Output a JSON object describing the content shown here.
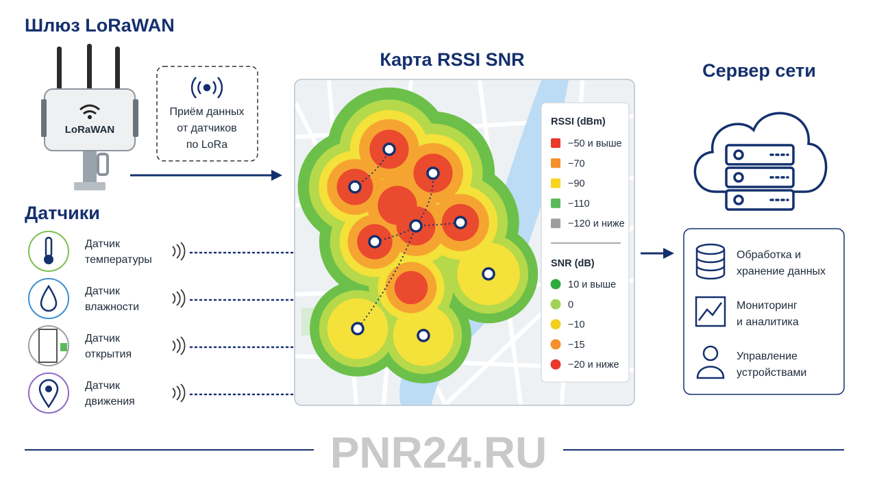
{
  "gateway": {
    "title": "Шлюз LoRaWAN",
    "device_label": "LoRaWAN",
    "note": [
      "Приём данных",
      "от датчиков",
      "по LoRa"
    ]
  },
  "sensors": {
    "title": "Датчики",
    "items": [
      [
        "Датчик",
        "температуры"
      ],
      [
        "Датчик",
        "влажности"
      ],
      [
        "Датчик",
        "открытия"
      ],
      [
        "Датчик",
        "движения"
      ]
    ]
  },
  "map": {
    "title": "Карта RSSI SNR",
    "rssi": {
      "title": "RSSI (dBm)",
      "items": [
        {
          "label": "−50 и выше",
          "color": "#e8392b"
        },
        {
          "label": "−70",
          "color": "#f5902a"
        },
        {
          "label": "−90",
          "color": "#f7d423"
        },
        {
          "label": "−110",
          "color": "#5cb85c"
        },
        {
          "label": "−120 и ниже",
          "color": "#9e9e9e"
        }
      ]
    },
    "snr": {
      "title": "SNR (dB)",
      "items": [
        {
          "label": "10 и выше",
          "color": "#2eaa3f"
        },
        {
          "label": "0",
          "color": "#9fd35a"
        },
        {
          "label": "−10",
          "color": "#f2d01c"
        },
        {
          "label": "−15",
          "color": "#f5902a"
        },
        {
          "label": "−20 и ниже",
          "color": "#e8392b"
        }
      ]
    }
  },
  "server": {
    "title": "Сервер сети",
    "items": [
      [
        "Обработка и",
        "хранение данных"
      ],
      [
        "Мониторинг",
        "и аналитика"
      ],
      [
        "Управление",
        "устройствами"
      ]
    ]
  },
  "footer": {
    "watermark": "PNR24.RU"
  }
}
